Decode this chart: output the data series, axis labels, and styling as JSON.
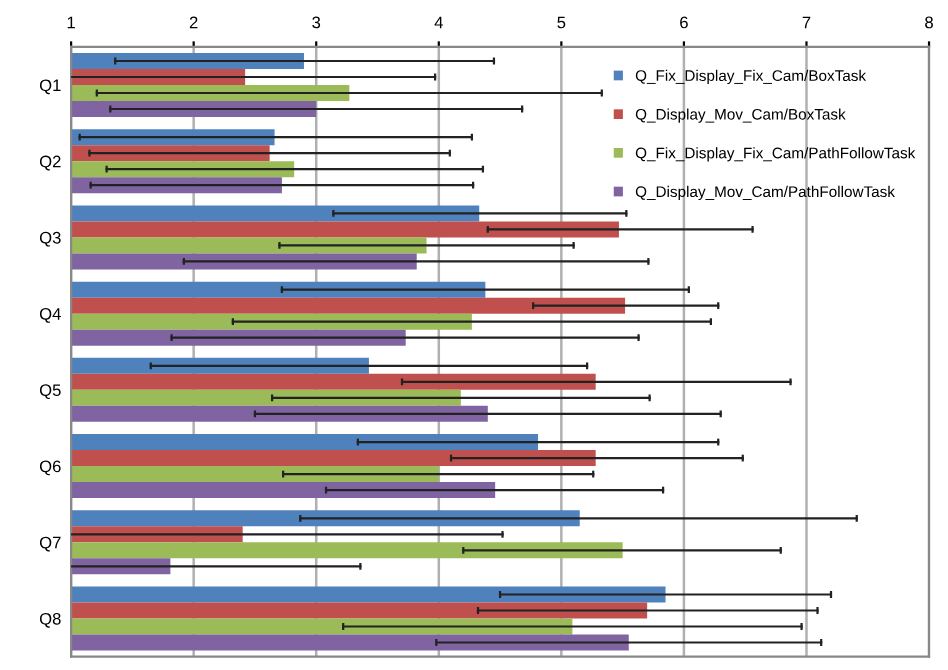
{
  "chart_data": {
    "type": "bar",
    "orientation": "horizontal",
    "categories": [
      "Q1",
      "Q2",
      "Q3",
      "Q4",
      "Q5",
      "Q6",
      "Q7",
      "Q8"
    ],
    "series": [
      {
        "name": "Q_Fix_Display_Fix_Cam/BoxTask",
        "color": "#4f81bd",
        "values": [
          2.9,
          2.66,
          4.33,
          4.38,
          3.43,
          4.81,
          5.15,
          5.85
        ],
        "errors": [
          [
            1.36,
            4.45
          ],
          [
            1.07,
            4.27
          ],
          [
            3.14,
            5.53
          ],
          [
            2.72,
            6.04
          ],
          [
            1.65,
            5.21
          ],
          [
            3.34,
            6.28
          ],
          [
            2.87,
            7.41
          ],
          [
            4.5,
            7.2
          ]
        ]
      },
      {
        "name": "Q_Display_Mov_Cam/BoxTask",
        "color": "#c0504d",
        "values": [
          2.42,
          2.62,
          5.47,
          5.52,
          5.28,
          5.28,
          2.4,
          5.7
        ],
        "errors": [
          [
            1,
            3.97
          ],
          [
            1.15,
            4.09
          ],
          [
            4.4,
            6.56
          ],
          [
            4.77,
            6.28
          ],
          [
            3.7,
            6.87
          ],
          [
            4.1,
            6.48
          ],
          [
            1,
            4.52
          ],
          [
            4.32,
            7.09
          ]
        ]
      },
      {
        "name": "Q_Fix_Display_Fix_Cam/PathFollowTask",
        "color": "#9bbb59",
        "values": [
          3.27,
          2.82,
          3.9,
          4.27,
          4.18,
          4.0,
          5.5,
          5.09
        ],
        "errors": [
          [
            1.21,
            5.33
          ],
          [
            1.29,
            4.36
          ],
          [
            2.7,
            5.1
          ],
          [
            2.32,
            6.22
          ],
          [
            2.64,
            5.72
          ],
          [
            2.73,
            5.26
          ],
          [
            4.2,
            6.79
          ],
          [
            3.22,
            6.96
          ]
        ]
      },
      {
        "name": "Q_Display_Mov_Cam/PathFollowTask",
        "color": "#8064a2",
        "values": [
          3.0,
          2.72,
          3.82,
          3.73,
          4.4,
          4.46,
          1.81,
          5.55
        ],
        "errors": [
          [
            1.32,
            4.68
          ],
          [
            1.16,
            4.28
          ],
          [
            1.92,
            5.71
          ],
          [
            1.82,
            5.63
          ],
          [
            2.5,
            6.3
          ],
          [
            3.08,
            5.83
          ],
          [
            1,
            3.36
          ],
          [
            3.98,
            7.12
          ]
        ]
      }
    ],
    "xlim": [
      1,
      8
    ],
    "xticks": [
      1,
      2,
      3,
      4,
      5,
      6,
      7,
      8
    ],
    "grid": "x",
    "legend": "top right"
  }
}
